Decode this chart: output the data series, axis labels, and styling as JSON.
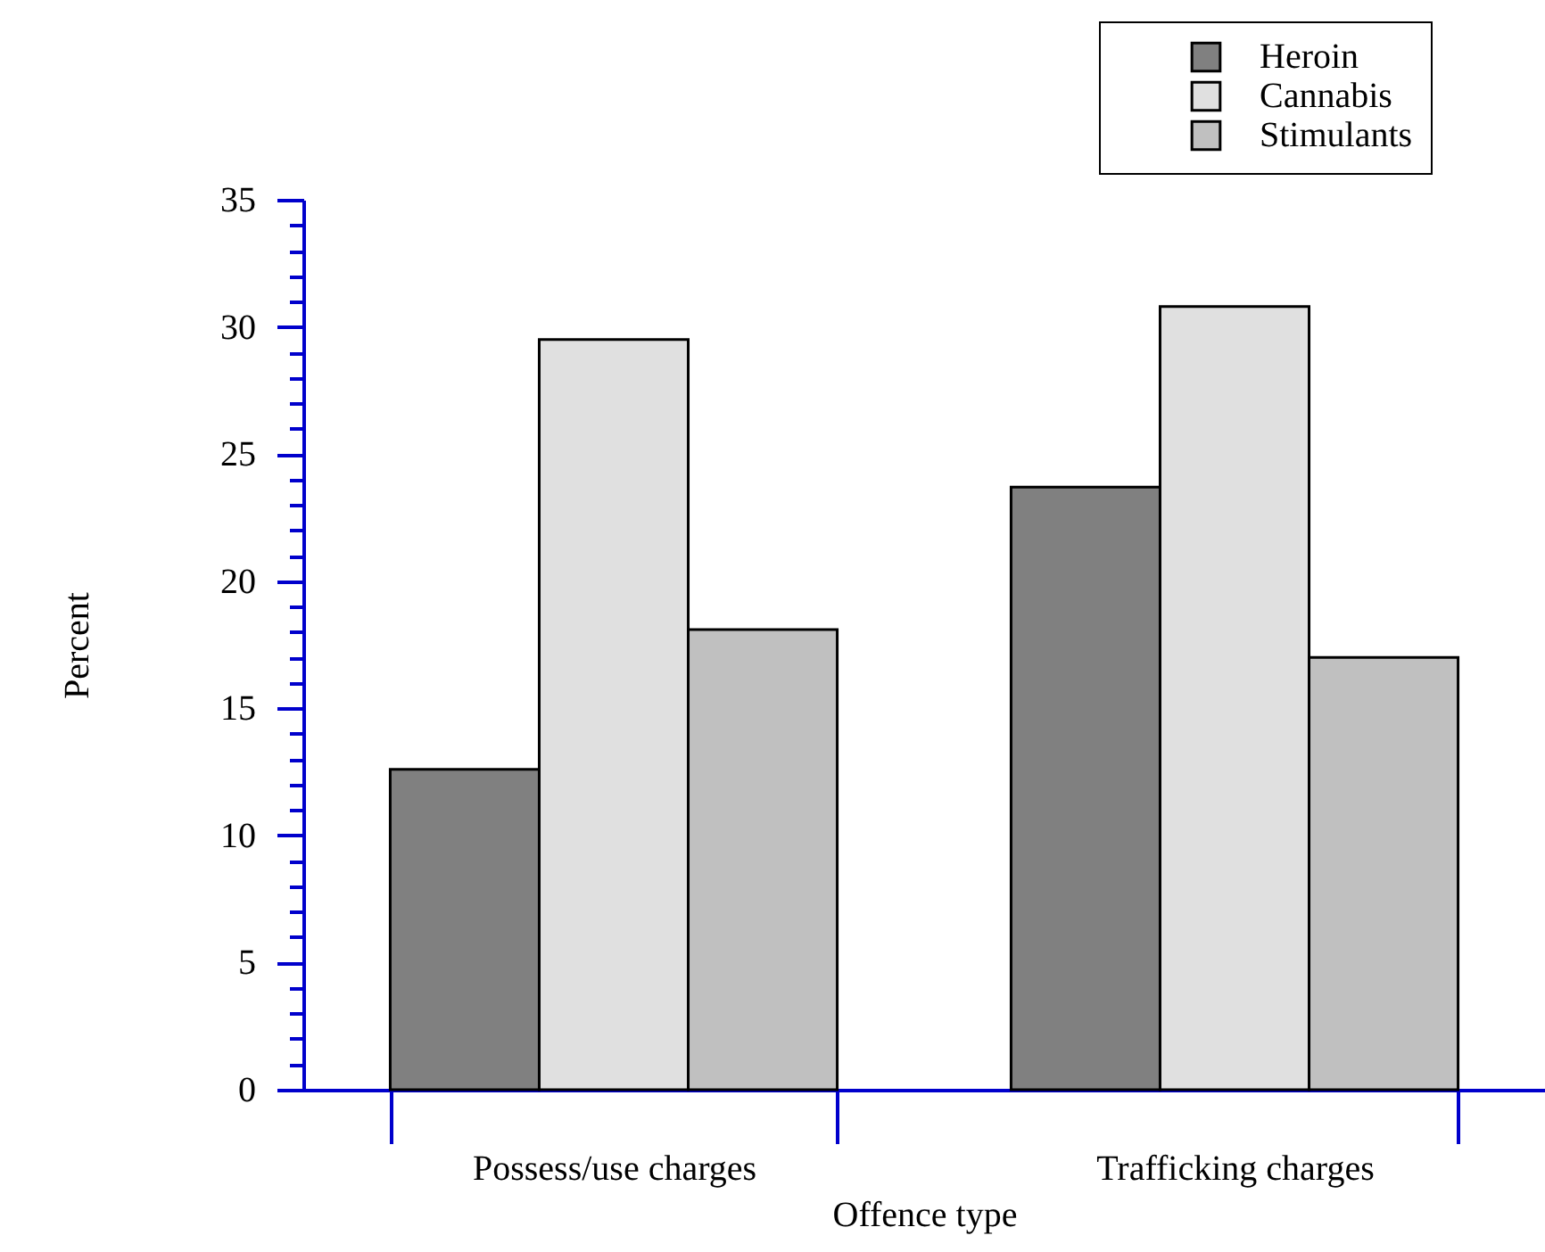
{
  "chart_data": {
    "type": "bar",
    "xlabel": "Offence type",
    "ylabel": "Percent",
    "categories": [
      "Possess/use charges",
      "Trafficking charges"
    ],
    "series": [
      {
        "name": "Heroin",
        "color": "#808080",
        "values": [
          12.6,
          23.7
        ]
      },
      {
        "name": "Cannabis",
        "color": "#e0e0e0",
        "values": [
          29.5,
          30.8
        ]
      },
      {
        "name": "Stimulants",
        "color": "#c0c0c0",
        "values": [
          18.1,
          17.0
        ]
      }
    ],
    "ylim": [
      0,
      35
    ],
    "yticks": [
      0,
      {
        "value": 1,
        "label": null
      },
      {
        "value": 2,
        "label": null
      },
      {
        "value": 3,
        "label": null
      },
      {
        "value": 4,
        "label": null
      },
      5,
      {
        "value": 6,
        "label": null
      },
      {
        "value": 7,
        "label": null
      },
      {
        "value": 8,
        "label": null
      },
      {
        "value": 9,
        "label": null
      },
      10,
      {
        "value": 11,
        "label": null
      },
      {
        "value": 12,
        "label": null
      },
      {
        "value": 13,
        "label": null
      },
      {
        "value": 14,
        "label": null
      },
      15,
      {
        "value": 16,
        "label": null
      },
      {
        "value": 17,
        "label": null
      },
      {
        "value": 18,
        "label": null
      },
      {
        "value": 19,
        "label": null
      },
      20,
      {
        "value": 21,
        "label": null
      },
      {
        "value": 22,
        "label": null
      },
      {
        "value": 23,
        "label": null
      },
      {
        "value": 24,
        "label": null
      },
      25,
      {
        "value": 26,
        "label": null
      },
      {
        "value": 27,
        "label": null
      },
      {
        "value": 28,
        "label": null
      },
      {
        "value": 29,
        "label": null
      },
      30,
      {
        "value": 31,
        "label": null
      },
      {
        "value": 32,
        "label": null
      },
      {
        "value": 33,
        "label": null
      },
      {
        "value": 34,
        "label": null
      },
      35
    ],
    "grid": false,
    "legend": "top right"
  }
}
